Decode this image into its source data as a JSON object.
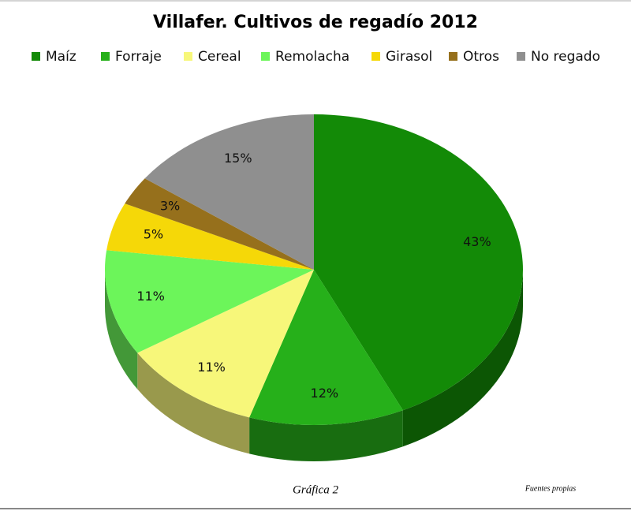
{
  "chart_data": {
    "type": "pie",
    "title": "Villafer.  Cultivos de regadío  2012",
    "categories": [
      "Maíz",
      "Forraje",
      "Cereal",
      "Remolacha",
      "Girasol",
      "Otros",
      "No regado"
    ],
    "values": [
      43,
      12,
      11,
      11,
      5,
      3,
      15
    ],
    "value_labels": [
      "43%",
      "12%",
      "11%",
      "11%",
      "5%",
      "3%",
      "15%"
    ],
    "colors": [
      "#138a07",
      "#26b01a",
      "#f7f77a",
      "#6cf55a",
      "#f5d808",
      "#96701c",
      "#8f8f8f"
    ],
    "legend": "top",
    "caption": "Gráfica 2",
    "source": "Fuentes propias"
  }
}
